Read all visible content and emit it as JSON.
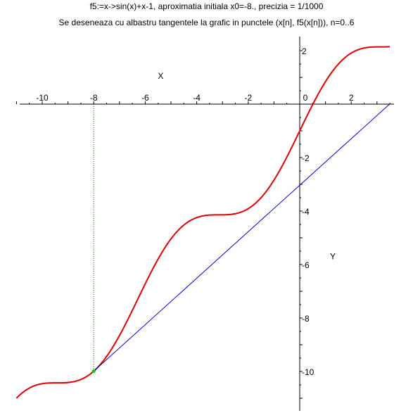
{
  "chart_data": {
    "type": "line",
    "title": "f5:=x->sin(x)+x-1, aproximatia initiala x0=-8.,  precizia = 1/1000",
    "subtitle": "Se deseneaza cu albastru tangentele la grafic in punctele (x[n], f5(x[n])), n=0..6",
    "xlabel": "X",
    "ylabel": "Y",
    "xlim": [
      -11,
      3.5
    ],
    "ylim": [
      -11.3,
      2.4
    ],
    "x_ticks": [
      -10,
      -8,
      -6,
      -4,
      -2,
      0,
      2
    ],
    "y_ticks": [
      2,
      0,
      -2,
      -4,
      -6,
      -8,
      -10
    ],
    "grid": false,
    "series": [
      {
        "function": "sin(x)+x-1",
        "color": "#e00000",
        "x_range": [
          -11,
          3.5
        ]
      },
      {
        "kind": "tangent",
        "color": "#0000cc",
        "from": [
          -8,
          -9.989
        ],
        "to": [
          3.5,
          0.01
        ]
      },
      {
        "kind": "guide",
        "color": "#007000",
        "from": [
          -8,
          0
        ],
        "to": [
          -8,
          -9.989
        ]
      }
    ],
    "points": [
      {
        "x": -8,
        "y": -9.989,
        "color": "#00cc00"
      }
    ]
  }
}
